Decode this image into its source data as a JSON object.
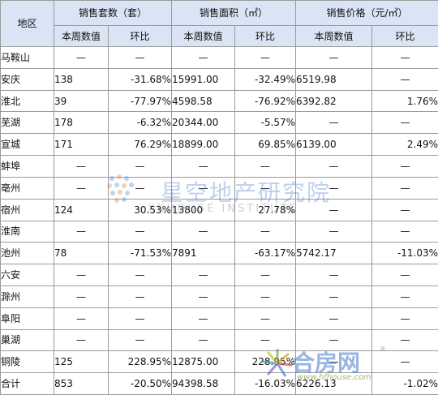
{
  "headers": {
    "region": "地区",
    "units_group": "销售套数（套）",
    "area_group": "销售面积（㎡）",
    "price_group": "销售价格（元/㎡）",
    "current": "本周数值",
    "change": "环比"
  },
  "rows": [
    {
      "city": "马鞍山",
      "units": "—",
      "units_chg": "—",
      "area": "—",
      "area_chg": "—",
      "price": "—",
      "price_chg": "—"
    },
    {
      "city": "安庆",
      "units": "138",
      "units_chg": "-31.68%",
      "area": "15991.00",
      "area_chg": "-32.49%",
      "price": "6519.98",
      "price_chg": "—"
    },
    {
      "city": "淮北",
      "units": "39",
      "units_chg": "-77.97%",
      "area": "4598.58",
      "area_chg": "-76.92%",
      "price": "6392.82",
      "price_chg": "1.76%"
    },
    {
      "city": "芜湖",
      "units": "178",
      "units_chg": "-6.32%",
      "area": "20344.00",
      "area_chg": "-5.57%",
      "price": "—",
      "price_chg": "—"
    },
    {
      "city": "宣城",
      "units": "171",
      "units_chg": "76.29%",
      "area": "18899.00",
      "area_chg": "69.85%",
      "price": "6139.00",
      "price_chg": "2.49%"
    },
    {
      "city": "蚌埠",
      "units": "—",
      "units_chg": "—",
      "area": "—",
      "area_chg": "—",
      "price": "—",
      "price_chg": "—"
    },
    {
      "city": "亳州",
      "units": "—",
      "units_chg": "—",
      "area": "—",
      "area_chg": "—",
      "price": "—",
      "price_chg": "—"
    },
    {
      "city": "宿州",
      "units": "124",
      "units_chg": "30.53%",
      "area": "13800",
      "area_chg": "27.78%",
      "price": "—",
      "price_chg": "—"
    },
    {
      "city": "淮南",
      "units": "—",
      "units_chg": "—",
      "area": "—",
      "area_chg": "—",
      "price": "—",
      "price_chg": "—"
    },
    {
      "city": "池州",
      "units": "78",
      "units_chg": "-71.53%",
      "area": "7891",
      "area_chg": "-63.17%",
      "price": "5742.17",
      "price_chg": "-11.03%"
    },
    {
      "city": "六安",
      "units": "—",
      "units_chg": "—",
      "area": "—",
      "area_chg": "—",
      "price": "—",
      "price_chg": "—"
    },
    {
      "city": "滁州",
      "units": "—",
      "units_chg": "—",
      "area": "—",
      "area_chg": "—",
      "price": "—",
      "price_chg": "—"
    },
    {
      "city": "阜阳",
      "units": "—",
      "units_chg": "—",
      "area": "—",
      "area_chg": "—",
      "price": "—",
      "price_chg": "—"
    },
    {
      "city": "巢湖",
      "units": "—",
      "units_chg": "—",
      "area": "—",
      "area_chg": "—",
      "price": "—",
      "price_chg": "—"
    },
    {
      "city": "铜陵",
      "units": "125",
      "units_chg": "228.95%",
      "area": "12875.00",
      "area_chg": "228.95%",
      "price": "—",
      "price_chg": "—"
    },
    {
      "city": "合计",
      "units": "853",
      "units_chg": "-20.50%",
      "area": "94398.58",
      "area_chg": "-16.03%",
      "price": "6226.13",
      "price_chg": "-1.02%"
    }
  ],
  "watermarks": {
    "xk_title": "星空地产研究院",
    "xk_sub": "XKHOUSE INSTITUTE",
    "hf_name": "合房网",
    "hf_reg": "®",
    "hf_url": "www.hfhouse.com"
  },
  "colors": {
    "header_bg": "#d9e4f4",
    "grid": "#9a9a9a"
  }
}
